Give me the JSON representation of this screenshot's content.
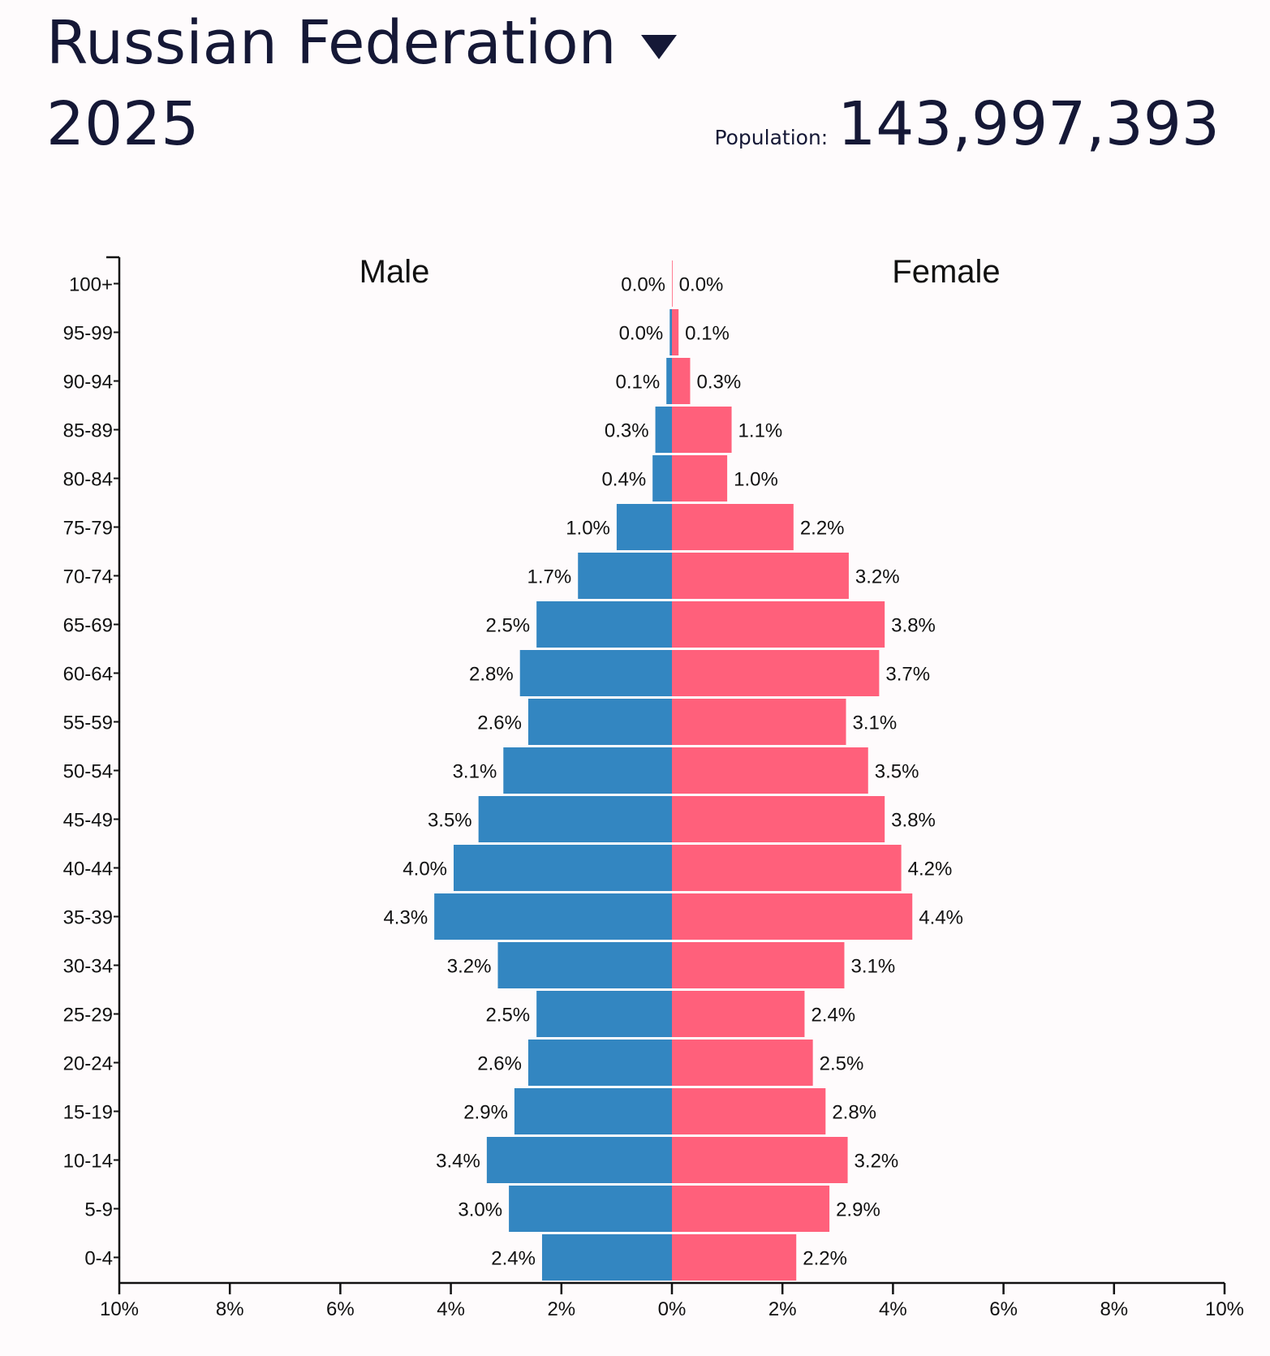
{
  "header": {
    "country": "Russian Federation",
    "year": "2025",
    "population_label": "Population:",
    "population_value": "143,997,393"
  },
  "chart_data": {
    "type": "bar",
    "orientation": "horizontal-pyramid",
    "categories": [
      "100+",
      "95-99",
      "90-94",
      "85-89",
      "80-84",
      "75-79",
      "70-74",
      "65-69",
      "60-64",
      "55-59",
      "50-54",
      "45-49",
      "40-44",
      "35-39",
      "30-34",
      "25-29",
      "20-24",
      "15-19",
      "10-14",
      "5-9",
      "0-4"
    ],
    "series": [
      {
        "name": "Male",
        "color": "#3386c1",
        "values": [
          0.0,
          0.04,
          0.1,
          0.3,
          0.35,
          1.0,
          1.7,
          2.45,
          2.75,
          2.6,
          3.05,
          3.5,
          3.95,
          4.3,
          3.15,
          2.45,
          2.6,
          2.85,
          3.35,
          2.95,
          2.35
        ],
        "labels": [
          "0.0%",
          "0.0%",
          "0.1%",
          "0.3%",
          "0.4%",
          "1.0%",
          "1.7%",
          "2.5%",
          "2.8%",
          "2.6%",
          "3.1%",
          "3.5%",
          "4.0%",
          "4.3%",
          "3.2%",
          "2.5%",
          "2.6%",
          "2.9%",
          "3.4%",
          "3.0%",
          "2.4%"
        ]
      },
      {
        "name": "Female",
        "color": "#ff607b",
        "values": [
          0.01,
          0.12,
          0.33,
          1.08,
          1.0,
          2.2,
          3.2,
          3.85,
          3.75,
          3.15,
          3.55,
          3.85,
          4.15,
          4.35,
          3.12,
          2.4,
          2.55,
          2.78,
          3.18,
          2.85,
          2.25
        ],
        "labels": [
          "0.0%",
          "0.1%",
          "0.3%",
          "1.1%",
          "1.0%",
          "2.2%",
          "3.2%",
          "3.8%",
          "3.7%",
          "3.1%",
          "3.5%",
          "3.8%",
          "4.2%",
          "4.4%",
          "3.1%",
          "2.4%",
          "2.5%",
          "2.8%",
          "3.2%",
          "2.9%",
          "2.2%"
        ]
      }
    ],
    "x_ticks": [
      "10%",
      "8%",
      "6%",
      "4%",
      "2%",
      "0%",
      "2%",
      "4%",
      "6%",
      "8%",
      "10%"
    ],
    "xlim": [
      -10,
      10
    ],
    "grid": false
  }
}
